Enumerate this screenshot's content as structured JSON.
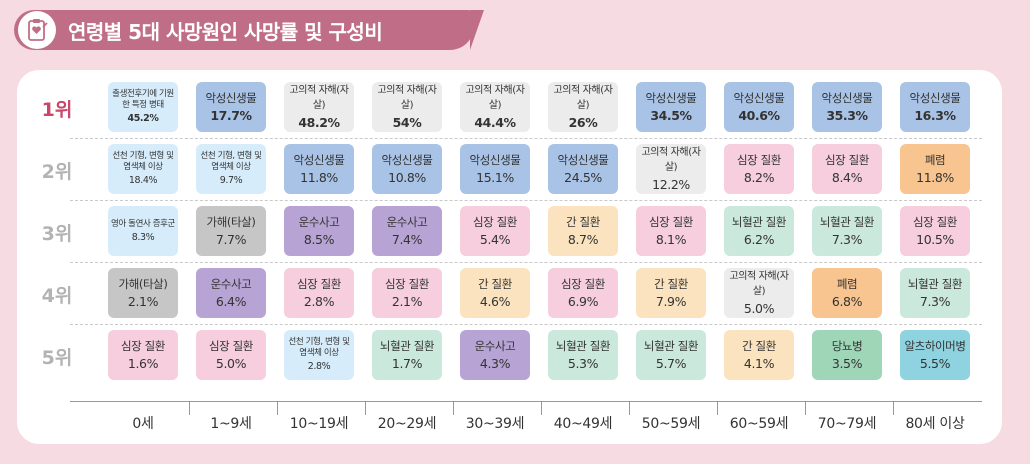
{
  "title": "연령별 5대 사망원인 사망률 및 구성비",
  "chart_data": {
    "type": "table",
    "title": "연령별 5대 사망원인 사망률 및 구성비",
    "ranks": [
      "1위",
      "2위",
      "3위",
      "4위",
      "5위"
    ],
    "age_groups": [
      "0세",
      "1~9세",
      "10~19세",
      "20~29세",
      "30~39세",
      "40~49세",
      "50~59세",
      "60~59세",
      "70~79세",
      "80세 이상"
    ],
    "cells": [
      [
        {
          "cause": "출생전후기에 기원한 특정 병태",
          "pct": "45.2%",
          "color": "#d6ecfa",
          "small": true
        },
        {
          "cause": "선천 기형, 변형 및 염색체 이상",
          "pct": "18.4%",
          "color": "#d6ecfa",
          "small": true
        },
        {
          "cause": "영아 돌연사 증후군",
          "pct": "8.3%",
          "color": "#d6ecfa",
          "small": true
        },
        {
          "cause": "가해(타살)",
          "pct": "2.1%",
          "color": "#c6c6c6"
        },
        {
          "cause": "심장 질환",
          "pct": "1.6%",
          "color": "#f6cede"
        }
      ],
      [
        {
          "cause": "악성신생물",
          "pct": "17.7%",
          "color": "#a8c3e6"
        },
        {
          "cause": "선천 기형, 변형 및 염색체 이상",
          "pct": "9.7%",
          "color": "#d6ecfa",
          "small": true
        },
        {
          "cause": "가해(타살)",
          "pct": "7.7%",
          "color": "#c6c6c6"
        },
        {
          "cause": "운수사고",
          "pct": "6.4%",
          "color": "#b7a3d4"
        },
        {
          "cause": "심장 질환",
          "pct": "5.0%",
          "color": "#f6cede"
        }
      ],
      [
        {
          "cause": "고의적 자해(자살)",
          "pct": "48.2%",
          "color": "#ececec",
          "smallcause": true
        },
        {
          "cause": "악성신생물",
          "pct": "11.8%",
          "color": "#a8c3e6"
        },
        {
          "cause": "운수사고",
          "pct": "8.5%",
          "color": "#b7a3d4"
        },
        {
          "cause": "심장 질환",
          "pct": "2.8%",
          "color": "#f6cede"
        },
        {
          "cause": "선천 기형, 변형 및 염색체 이상",
          "pct": "2.8%",
          "color": "#d6ecfa",
          "small": true
        }
      ],
      [
        {
          "cause": "고의적 자해(자살)",
          "pct": "54%",
          "color": "#ececec",
          "smallcause": true
        },
        {
          "cause": "악성신생물",
          "pct": "10.8%",
          "color": "#a8c3e6"
        },
        {
          "cause": "운수사고",
          "pct": "7.4%",
          "color": "#b7a3d4"
        },
        {
          "cause": "심장 질환",
          "pct": "2.1%",
          "color": "#f6cede"
        },
        {
          "cause": "뇌혈관 질환",
          "pct": "1.7%",
          "color": "#cbe8dc"
        }
      ],
      [
        {
          "cause": "고의적 자해(자살)",
          "pct": "44.4%",
          "color": "#ececec",
          "smallcause": true
        },
        {
          "cause": "악성신생물",
          "pct": "15.1%",
          "color": "#a8c3e6"
        },
        {
          "cause": "심장 질환",
          "pct": "5.4%",
          "color": "#f6cede"
        },
        {
          "cause": "간 질환",
          "pct": "4.6%",
          "color": "#fbe3bf"
        },
        {
          "cause": "운수사고",
          "pct": "4.3%",
          "color": "#b7a3d4"
        }
      ],
      [
        {
          "cause": "고의적 자해(자살)",
          "pct": "26%",
          "color": "#ececec",
          "smallcause": true
        },
        {
          "cause": "악성신생물",
          "pct": "24.5%",
          "color": "#a8c3e6"
        },
        {
          "cause": "간 질환",
          "pct": "8.7%",
          "color": "#fbe3bf"
        },
        {
          "cause": "심장 질환",
          "pct": "6.9%",
          "color": "#f6cede"
        },
        {
          "cause": "뇌혈관 질환",
          "pct": "5.3%",
          "color": "#cbe8dc"
        }
      ],
      [
        {
          "cause": "악성신생물",
          "pct": "34.5%",
          "color": "#a8c3e6"
        },
        {
          "cause": "고의적 자해(자살)",
          "pct": "12.2%",
          "color": "#ececec",
          "smallcause": true
        },
        {
          "cause": "심장 질환",
          "pct": "8.1%",
          "color": "#f6cede"
        },
        {
          "cause": "간 질환",
          "pct": "7.9%",
          "color": "#fbe3bf"
        },
        {
          "cause": "뇌혈관 질환",
          "pct": "5.7%",
          "color": "#cbe8dc"
        }
      ],
      [
        {
          "cause": "악성신생물",
          "pct": "40.6%",
          "color": "#a8c3e6"
        },
        {
          "cause": "심장 질환",
          "pct": "8.2%",
          "color": "#f6cede"
        },
        {
          "cause": "뇌혈관 질환",
          "pct": "6.2%",
          "color": "#cbe8dc"
        },
        {
          "cause": "고의적 자해(자살)",
          "pct": "5.0%",
          "color": "#ececec",
          "smallcause": true
        },
        {
          "cause": "간 질환",
          "pct": "4.1%",
          "color": "#fbe3bf"
        }
      ],
      [
        {
          "cause": "악성신생물",
          "pct": "35.3%",
          "color": "#a8c3e6"
        },
        {
          "cause": "심장 질환",
          "pct": "8.4%",
          "color": "#f6cede"
        },
        {
          "cause": "뇌혈관 질환",
          "pct": "7.3%",
          "color": "#cbe8dc"
        },
        {
          "cause": "폐렴",
          "pct": "6.8%",
          "color": "#f8c48f"
        },
        {
          "cause": "당뇨병",
          "pct": "3.5%",
          "color": "#9fd6b8"
        }
      ],
      [
        {
          "cause": "악성신생물",
          "pct": "16.3%",
          "color": "#a8c3e6"
        },
        {
          "cause": "폐렴",
          "pct": "11.8%",
          "color": "#f8c48f"
        },
        {
          "cause": "심장 질환",
          "pct": "10.5%",
          "color": "#f6cede"
        },
        {
          "cause": "뇌혈관 질환",
          "pct": "7.3%",
          "color": "#cbe8dc"
        },
        {
          "cause": "알츠하이머병",
          "pct": "5.5%",
          "color": "#8fd3e0"
        }
      ]
    ]
  }
}
